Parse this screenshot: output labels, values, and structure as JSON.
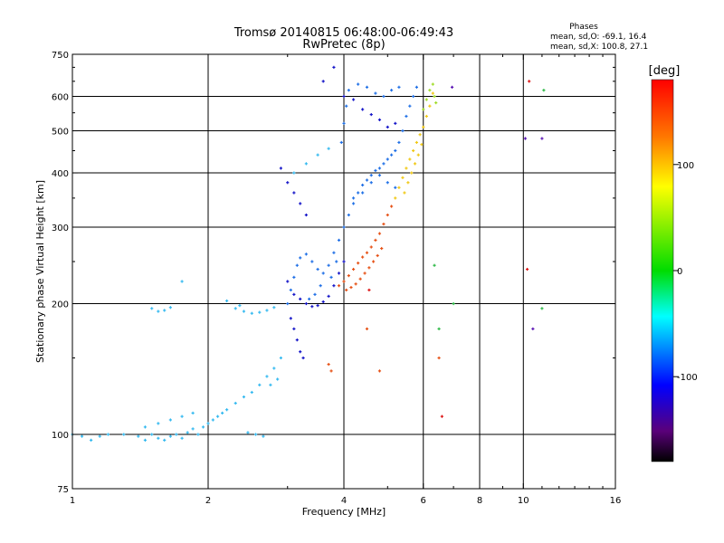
{
  "chart_data": {
    "type": "scatter",
    "title": "Tromsø 20140815 06:48:00-06:49:43",
    "subtitle": "RwPretec (8p)",
    "stats": {
      "heading": "Phases",
      "line1": "mean, sd,O: -69.1, 16.4",
      "line2": "mean, sd,X: 100.8, 27.1"
    },
    "xlabel": "Frequency [MHz]",
    "ylabel": "Stationary phase Virtual Height [km]",
    "x_scale": "log",
    "y_scale": "log",
    "xlim": [
      1,
      16
    ],
    "ylim": [
      75,
      750
    ],
    "xticks": [
      1,
      2,
      4,
      6,
      8,
      10,
      16
    ],
    "yticks": [
      75,
      100,
      200,
      300,
      400,
      500,
      600,
      750
    ],
    "grid_x": [
      2,
      4,
      6,
      8,
      10
    ],
    "grid_y": [
      100,
      200,
      300,
      400,
      500,
      600
    ],
    "colorbar": {
      "label": "[deg]",
      "range": [
        -180,
        180
      ],
      "ticks": [
        100,
        0,
        -100
      ]
    },
    "series": [
      {
        "color": "#33b9f0",
        "points": [
          [
            1.0,
            100
          ],
          [
            1.05,
            99
          ],
          [
            1.1,
            97
          ],
          [
            1.15,
            99
          ],
          [
            1.2,
            100
          ],
          [
            1.3,
            100
          ],
          [
            1.4,
            99
          ],
          [
            1.45,
            97
          ],
          [
            1.5,
            100
          ],
          [
            1.55,
            98
          ],
          [
            1.6,
            97
          ],
          [
            1.65,
            99
          ],
          [
            1.7,
            100
          ],
          [
            1.75,
            98
          ],
          [
            1.8,
            101
          ],
          [
            1.85,
            103
          ],
          [
            1.9,
            100
          ],
          [
            1.95,
            104
          ],
          [
            2.0,
            106
          ],
          [
            2.05,
            108
          ],
          [
            2.1,
            110
          ],
          [
            2.15,
            112
          ],
          [
            2.2,
            114
          ],
          [
            2.3,
            118
          ],
          [
            2.4,
            122
          ],
          [
            2.5,
            125
          ],
          [
            2.6,
            130
          ],
          [
            2.7,
            136
          ],
          [
            2.8,
            142
          ],
          [
            2.9,
            150
          ],
          [
            1.5,
            195
          ],
          [
            1.55,
            192
          ],
          [
            1.6,
            193
          ],
          [
            1.65,
            196
          ],
          [
            2.3,
            195
          ],
          [
            2.4,
            192
          ],
          [
            2.5,
            190
          ],
          [
            2.6,
            191
          ],
          [
            2.7,
            193
          ],
          [
            2.8,
            196
          ],
          [
            1.75,
            225
          ],
          [
            2.2,
            203
          ],
          [
            2.35,
            198
          ],
          [
            2.45,
            101
          ],
          [
            2.55,
            100
          ],
          [
            2.65,
            99
          ],
          [
            1.45,
            104
          ],
          [
            1.55,
            106
          ],
          [
            1.65,
            108
          ],
          [
            1.75,
            110
          ],
          [
            1.85,
            112
          ],
          [
            2.75,
            130
          ],
          [
            2.85,
            134
          ],
          [
            3.1,
            400
          ],
          [
            3.3,
            420
          ],
          [
            3.5,
            440
          ],
          [
            3.7,
            455
          ]
        ]
      },
      {
        "color": "#1e6fe6",
        "points": [
          [
            3.0,
            200
          ],
          [
            3.05,
            215
          ],
          [
            3.1,
            230
          ],
          [
            3.15,
            245
          ],
          [
            3.2,
            255
          ],
          [
            3.3,
            260
          ],
          [
            3.4,
            250
          ],
          [
            3.5,
            240
          ],
          [
            3.6,
            235
          ],
          [
            3.7,
            245
          ],
          [
            3.8,
            262
          ],
          [
            3.9,
            280
          ],
          [
            4.0,
            300
          ],
          [
            4.1,
            320
          ],
          [
            4.2,
            340
          ],
          [
            4.3,
            360
          ],
          [
            4.4,
            375
          ],
          [
            4.5,
            385
          ],
          [
            4.6,
            395
          ],
          [
            4.7,
            405
          ],
          [
            4.8,
            410
          ],
          [
            4.9,
            420
          ],
          [
            5.0,
            430
          ],
          [
            5.1,
            440
          ],
          [
            5.2,
            450
          ],
          [
            5.3,
            470
          ],
          [
            5.4,
            500
          ],
          [
            5.5,
            540
          ],
          [
            5.6,
            570
          ],
          [
            5.7,
            600
          ],
          [
            5.8,
            630
          ],
          [
            3.95,
            470
          ],
          [
            4.0,
            520
          ],
          [
            4.05,
            570
          ],
          [
            4.1,
            620
          ],
          [
            4.3,
            640
          ],
          [
            4.5,
            630
          ],
          [
            4.7,
            610
          ],
          [
            4.9,
            600
          ],
          [
            5.1,
            620
          ],
          [
            5.3,
            630
          ],
          [
            4.2,
            350
          ],
          [
            4.4,
            360
          ],
          [
            4.6,
            380
          ],
          [
            4.8,
            395
          ],
          [
            5.0,
            380
          ],
          [
            5.2,
            370
          ],
          [
            3.35,
            205
          ],
          [
            3.45,
            210
          ],
          [
            3.55,
            220
          ],
          [
            3.75,
            230
          ],
          [
            3.85,
            250
          ]
        ]
      },
      {
        "color": "#1414c8",
        "points": [
          [
            3.0,
            225
          ],
          [
            3.1,
            210
          ],
          [
            3.2,
            205
          ],
          [
            3.3,
            200
          ],
          [
            3.4,
            197
          ],
          [
            3.5,
            198
          ],
          [
            3.6,
            202
          ],
          [
            3.7,
            208
          ],
          [
            3.8,
            220
          ],
          [
            3.9,
            235
          ],
          [
            4.0,
            250
          ],
          [
            3.05,
            185
          ],
          [
            3.1,
            175
          ],
          [
            3.15,
            165
          ],
          [
            3.2,
            155
          ],
          [
            3.25,
            150
          ],
          [
            2.9,
            410
          ],
          [
            3.0,
            380
          ],
          [
            3.1,
            360
          ],
          [
            3.2,
            340
          ],
          [
            3.3,
            320
          ],
          [
            3.6,
            650
          ],
          [
            3.8,
            700
          ],
          [
            4.0,
            600
          ],
          [
            4.2,
            590
          ],
          [
            4.4,
            560
          ],
          [
            4.6,
            545
          ],
          [
            4.8,
            530
          ],
          [
            5.0,
            510
          ],
          [
            5.2,
            520
          ]
        ]
      },
      {
        "color": "#e65014",
        "points": [
          [
            3.9,
            220
          ],
          [
            4.0,
            225
          ],
          [
            4.1,
            232
          ],
          [
            4.2,
            240
          ],
          [
            4.3,
            248
          ],
          [
            4.4,
            256
          ],
          [
            4.5,
            262
          ],
          [
            4.6,
            270
          ],
          [
            4.7,
            280
          ],
          [
            4.8,
            290
          ],
          [
            4.9,
            305
          ],
          [
            5.0,
            320
          ],
          [
            5.1,
            335
          ],
          [
            4.05,
            215
          ],
          [
            4.15,
            218
          ],
          [
            4.25,
            222
          ],
          [
            4.35,
            228
          ],
          [
            4.45,
            235
          ],
          [
            4.55,
            242
          ],
          [
            4.65,
            250
          ],
          [
            4.75,
            258
          ],
          [
            4.85,
            268
          ],
          [
            3.7,
            145
          ],
          [
            3.75,
            140
          ],
          [
            4.5,
            175
          ],
          [
            4.8,
            140
          ],
          [
            6.5,
            150
          ]
        ]
      },
      {
        "color": "#f0c814",
        "points": [
          [
            5.2,
            350
          ],
          [
            5.3,
            370
          ],
          [
            5.4,
            390
          ],
          [
            5.5,
            410
          ],
          [
            5.6,
            430
          ],
          [
            5.7,
            450
          ],
          [
            5.8,
            470
          ],
          [
            5.9,
            490
          ],
          [
            6.0,
            510
          ],
          [
            6.1,
            540
          ],
          [
            6.2,
            570
          ],
          [
            6.3,
            610
          ],
          [
            5.45,
            360
          ],
          [
            5.55,
            380
          ],
          [
            5.65,
            400
          ],
          [
            5.75,
            420
          ],
          [
            5.85,
            440
          ],
          [
            5.95,
            465
          ]
        ]
      },
      {
        "color": "#a0dc28",
        "points": [
          [
            6.0,
            560
          ],
          [
            6.1,
            590
          ],
          [
            6.2,
            620
          ],
          [
            6.3,
            640
          ],
          [
            6.35,
            600
          ],
          [
            6.4,
            580
          ]
        ]
      },
      {
        "color": "#2db946",
        "points": [
          [
            6.35,
            245
          ],
          [
            6.5,
            175
          ],
          [
            7.0,
            200
          ],
          [
            11.0,
            195
          ],
          [
            11.1,
            620
          ]
        ]
      },
      {
        "color": "#dc1414",
        "points": [
          [
            6.6,
            110
          ],
          [
            10.2,
            240
          ],
          [
            10.3,
            650
          ],
          [
            4.55,
            215
          ]
        ]
      },
      {
        "color": "#5a14b4",
        "points": [
          [
            10.1,
            480
          ],
          [
            10.5,
            175
          ],
          [
            11.0,
            480
          ],
          [
            6.95,
            630
          ]
        ]
      }
    ]
  }
}
